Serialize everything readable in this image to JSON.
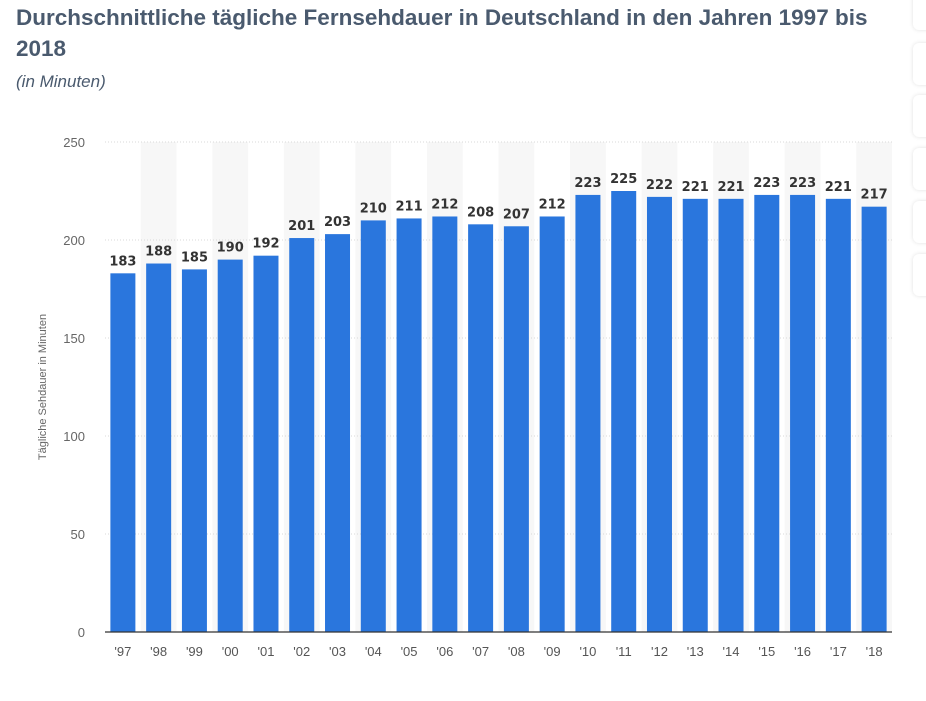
{
  "chart_data": {
    "type": "bar",
    "title": "Durchschnittliche tägliche Fernsehdauer in Deutschland in den Jahren 1997 bis 2018",
    "subtitle": "(in Minuten)",
    "ylabel": "Tägliche Sehdauer in Minuten",
    "xlabel": "",
    "ylim": [
      0,
      250
    ],
    "yticks": [
      0,
      50,
      100,
      150,
      200,
      250
    ],
    "grid": true,
    "categories": [
      "'97",
      "'98",
      "'99",
      "'00",
      "'01",
      "'02",
      "'03",
      "'04",
      "'05",
      "'06",
      "'07",
      "'08",
      "'09",
      "'10",
      "'11",
      "'12",
      "'13",
      "'14",
      "'15",
      "'16",
      "'17",
      "'18"
    ],
    "values": [
      183,
      188,
      185,
      190,
      192,
      201,
      203,
      210,
      211,
      212,
      208,
      207,
      212,
      223,
      225,
      222,
      221,
      221,
      223,
      223,
      221,
      217
    ],
    "bar_color": "#2a76dd",
    "data_labels": true
  },
  "side_buttons": 6
}
